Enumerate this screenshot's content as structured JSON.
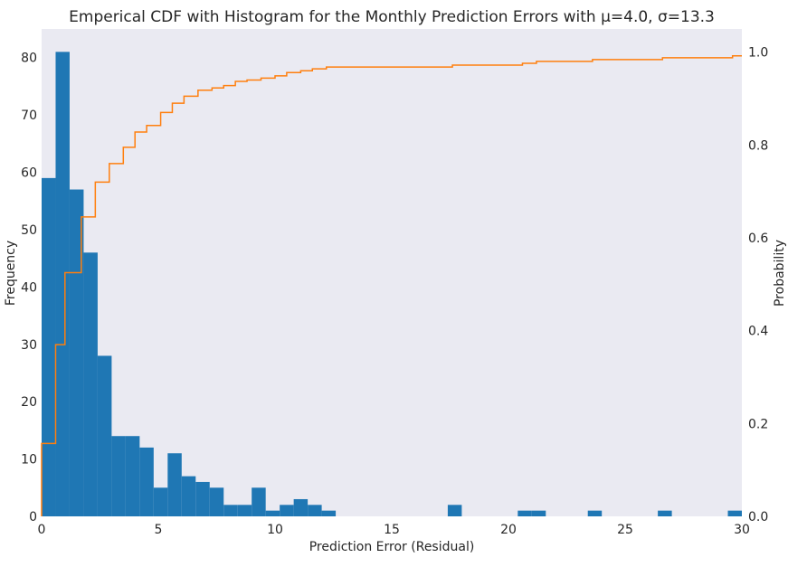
{
  "chart_data": {
    "type": "bar",
    "title": "Emperical CDF with Histogram for the Monthly Prediction Errors with μ=4.0, σ=13.3",
    "xlabel": "Prediction Error (Residual)",
    "ylabel": "Frequency",
    "y2label": "Probability",
    "xlim": [
      0,
      30
    ],
    "ylim": [
      0,
      85
    ],
    "y2lim": [
      0,
      1.05
    ],
    "xticks": [
      "0",
      "5",
      "10",
      "15",
      "20",
      "25",
      "30"
    ],
    "yticks": [
      "0",
      "10",
      "20",
      "30",
      "40",
      "50",
      "60",
      "70",
      "80"
    ],
    "y2ticks": [
      "0.0",
      "0.2",
      "0.4",
      "0.6",
      "0.8",
      "1.0"
    ],
    "grid": false,
    "colors": {
      "bars": "#1f77b4",
      "cdf": "#ff7f0e",
      "plot_bg": "#eaeaf2"
    },
    "series": [
      {
        "kind": "histogram",
        "bin_width": 0.6,
        "bin_starts": [
          0,
          0.6,
          1.2,
          1.8,
          2.4,
          3.0,
          3.6,
          4.2,
          4.8,
          5.4,
          6.0,
          6.6,
          7.2,
          7.8,
          8.4,
          9.0,
          9.6,
          10.2,
          10.8,
          11.4,
          12.0,
          17.4,
          20.4,
          21.0,
          23.4,
          26.4,
          29.4
        ],
        "values": [
          59,
          81,
          57,
          46,
          28,
          14,
          14,
          12,
          5,
          11,
          7,
          6,
          5,
          2,
          2,
          5,
          1,
          2,
          3,
          2,
          1,
          2,
          1,
          1,
          1,
          1,
          1
        ]
      },
      {
        "kind": "cdf",
        "x": [
          0,
          0.6,
          1.0,
          1.7,
          2.3,
          2.9,
          3.5,
          4.0,
          4.5,
          5.1,
          5.6,
          6.1,
          6.7,
          7.3,
          7.8,
          8.3,
          8.8,
          9.4,
          10.0,
          10.5,
          11.1,
          11.6,
          12.2,
          17.6,
          20.6,
          21.2,
          23.6,
          26.6,
          29.6,
          30
        ],
        "y": [
          0.157,
          0.37,
          0.525,
          0.645,
          0.72,
          0.76,
          0.795,
          0.828,
          0.842,
          0.87,
          0.89,
          0.905,
          0.918,
          0.923,
          0.928,
          0.937,
          0.94,
          0.944,
          0.949,
          0.956,
          0.96,
          0.964,
          0.968,
          0.972,
          0.976,
          0.98,
          0.984,
          0.988,
          0.992,
          0.992
        ]
      }
    ]
  }
}
